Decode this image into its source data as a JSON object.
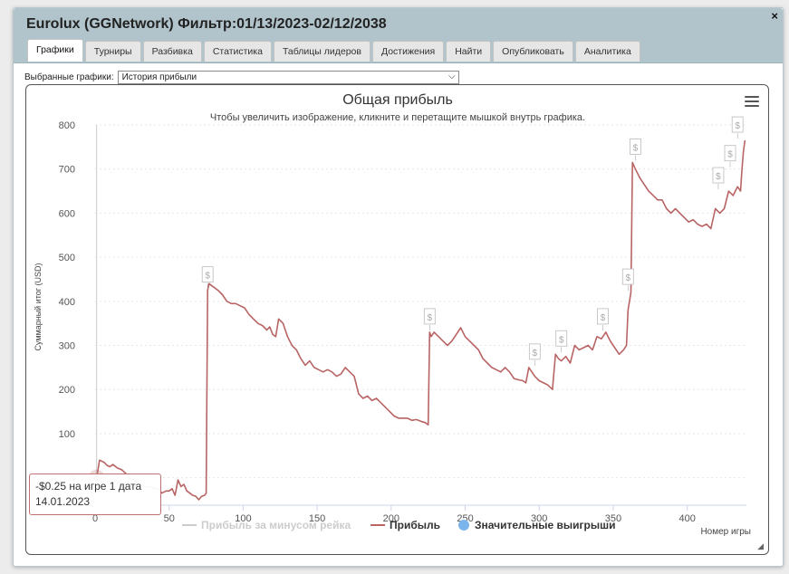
{
  "window": {
    "title": "Eurolux (GGNetwork) Фильтр:01/13/2023-02/12/2038",
    "close_glyph": "×"
  },
  "tabs": [
    {
      "label": "Графики",
      "active": true
    },
    {
      "label": "Турниры",
      "active": false
    },
    {
      "label": "Разбивка",
      "active": false
    },
    {
      "label": "Статистика",
      "active": false
    },
    {
      "label": "Таблицы лидеров",
      "active": false
    },
    {
      "label": "Достижения",
      "active": false
    },
    {
      "label": "Найти",
      "active": false
    },
    {
      "label": "Опубликовать",
      "active": false
    },
    {
      "label": "Аналитика",
      "active": false
    }
  ],
  "graph_selector": {
    "label": "Выбранные графики:",
    "value": "История прибыли"
  },
  "tooltip": {
    "line1": "-$0.25 на игре 1 дата",
    "line2": "14.01.2023"
  },
  "chart_data": {
    "type": "line",
    "title": "Общая прибыль",
    "subtitle": "Чтобы увеличить изображение, кликните и перетащите мышкой внутрь графика.",
    "ylabel": "Суммарный итог (USD)",
    "xlabel": "Номер игры",
    "ylim": [
      -50,
      800
    ],
    "xlim": [
      0,
      440
    ],
    "yticks": [
      0,
      100,
      200,
      300,
      400,
      500,
      600,
      700,
      800
    ],
    "xticks": [
      0,
      50,
      100,
      150,
      200,
      250,
      300,
      350,
      400
    ],
    "grid": "horizontal dotted",
    "legend_position": "bottom",
    "legend": [
      {
        "name": "Прибыль за минусом рейка",
        "state": "hidden"
      },
      {
        "name": "Прибыль",
        "state": "visible"
      },
      {
        "name": "Значительные выигрыши",
        "state": "visible"
      }
    ],
    "colors": {
      "profit": "#b96464",
      "rake_hidden": "#cccccc",
      "big_wins": "#7cb5ec"
    },
    "series": [
      {
        "name": "Прибыль",
        "x": [
          1,
          3,
          6,
          8,
          10,
          12,
          15,
          18,
          20,
          22,
          24,
          26,
          28,
          30,
          33,
          35,
          38,
          40,
          43,
          45,
          48,
          50,
          52,
          54,
          56,
          58,
          60,
          62,
          64,
          66,
          68,
          70,
          72,
          74,
          75,
          76,
          77,
          79,
          81,
          83,
          86,
          89,
          92,
          95,
          98,
          101,
          104,
          107,
          110,
          113,
          116,
          118,
          120,
          122,
          124,
          127,
          130,
          133,
          136,
          139,
          142,
          145,
          148,
          151,
          154,
          157,
          160,
          163,
          166,
          169,
          172,
          175,
          178,
          181,
          184,
          187,
          190,
          193,
          196,
          199,
          202,
          205,
          208,
          211,
          214,
          217,
          220,
          223,
          225,
          226,
          227,
          229,
          232,
          235,
          238,
          241,
          244,
          247,
          250,
          253,
          256,
          259,
          262,
          265,
          268,
          271,
          274,
          277,
          280,
          283,
          286,
          289,
          291,
          293,
          295,
          297,
          300,
          303,
          306,
          309,
          311,
          313,
          315,
          318,
          321,
          324,
          327,
          330,
          333,
          336,
          339,
          342,
          345,
          348,
          351,
          354,
          357,
          359,
          360,
          361,
          362,
          363,
          365,
          368,
          371,
          374,
          377,
          380,
          383,
          386,
          389,
          392,
          395,
          398,
          401,
          404,
          407,
          410,
          413,
          416,
          419,
          422,
          425,
          428,
          431,
          434,
          436,
          437,
          438,
          439
        ],
        "y": [
          -1,
          40,
          35,
          28,
          25,
          30,
          22,
          18,
          12,
          5,
          -5,
          -3,
          -10,
          -15,
          -18,
          -22,
          -20,
          -25,
          -25,
          -35,
          -30,
          -30,
          -25,
          -40,
          -5,
          -20,
          -15,
          -30,
          -35,
          -40,
          -42,
          -50,
          -42,
          -40,
          -35,
          425,
          440,
          435,
          430,
          425,
          415,
          400,
          395,
          395,
          390,
          385,
          370,
          360,
          350,
          345,
          335,
          342,
          325,
          320,
          360,
          350,
          320,
          300,
          290,
          270,
          255,
          265,
          250,
          245,
          240,
          245,
          240,
          230,
          235,
          250,
          240,
          230,
          190,
          180,
          185,
          175,
          180,
          170,
          160,
          150,
          140,
          135,
          135,
          135,
          130,
          132,
          128,
          125,
          120,
          330,
          320,
          330,
          320,
          310,
          300,
          310,
          325,
          340,
          320,
          310,
          300,
          290,
          270,
          260,
          250,
          245,
          240,
          250,
          240,
          225,
          222,
          220,
          215,
          250,
          240,
          230,
          220,
          215,
          210,
          200,
          280,
          270,
          265,
          275,
          260,
          300,
          290,
          295,
          300,
          290,
          320,
          315,
          330,
          310,
          295,
          280,
          290,
          300,
          380,
          400,
          420,
          715,
          700,
          680,
          665,
          650,
          640,
          630,
          630,
          610,
          600,
          610,
          600,
          590,
          580,
          585,
          575,
          570,
          575,
          565,
          610,
          600,
          610,
          650,
          640,
          660,
          650,
          700,
          740,
          765
        ]
      },
      {
        "name": "Значительные выигрыши",
        "x": [
          76,
          226,
          297,
          315,
          343,
          360,
          365,
          421,
          429,
          434
        ],
        "y": [
          425,
          330,
          250,
          280,
          330,
          420,
          715,
          650,
          700,
          765
        ]
      }
    ],
    "highlight_point": {
      "x": 1,
      "y": -0.25
    }
  }
}
